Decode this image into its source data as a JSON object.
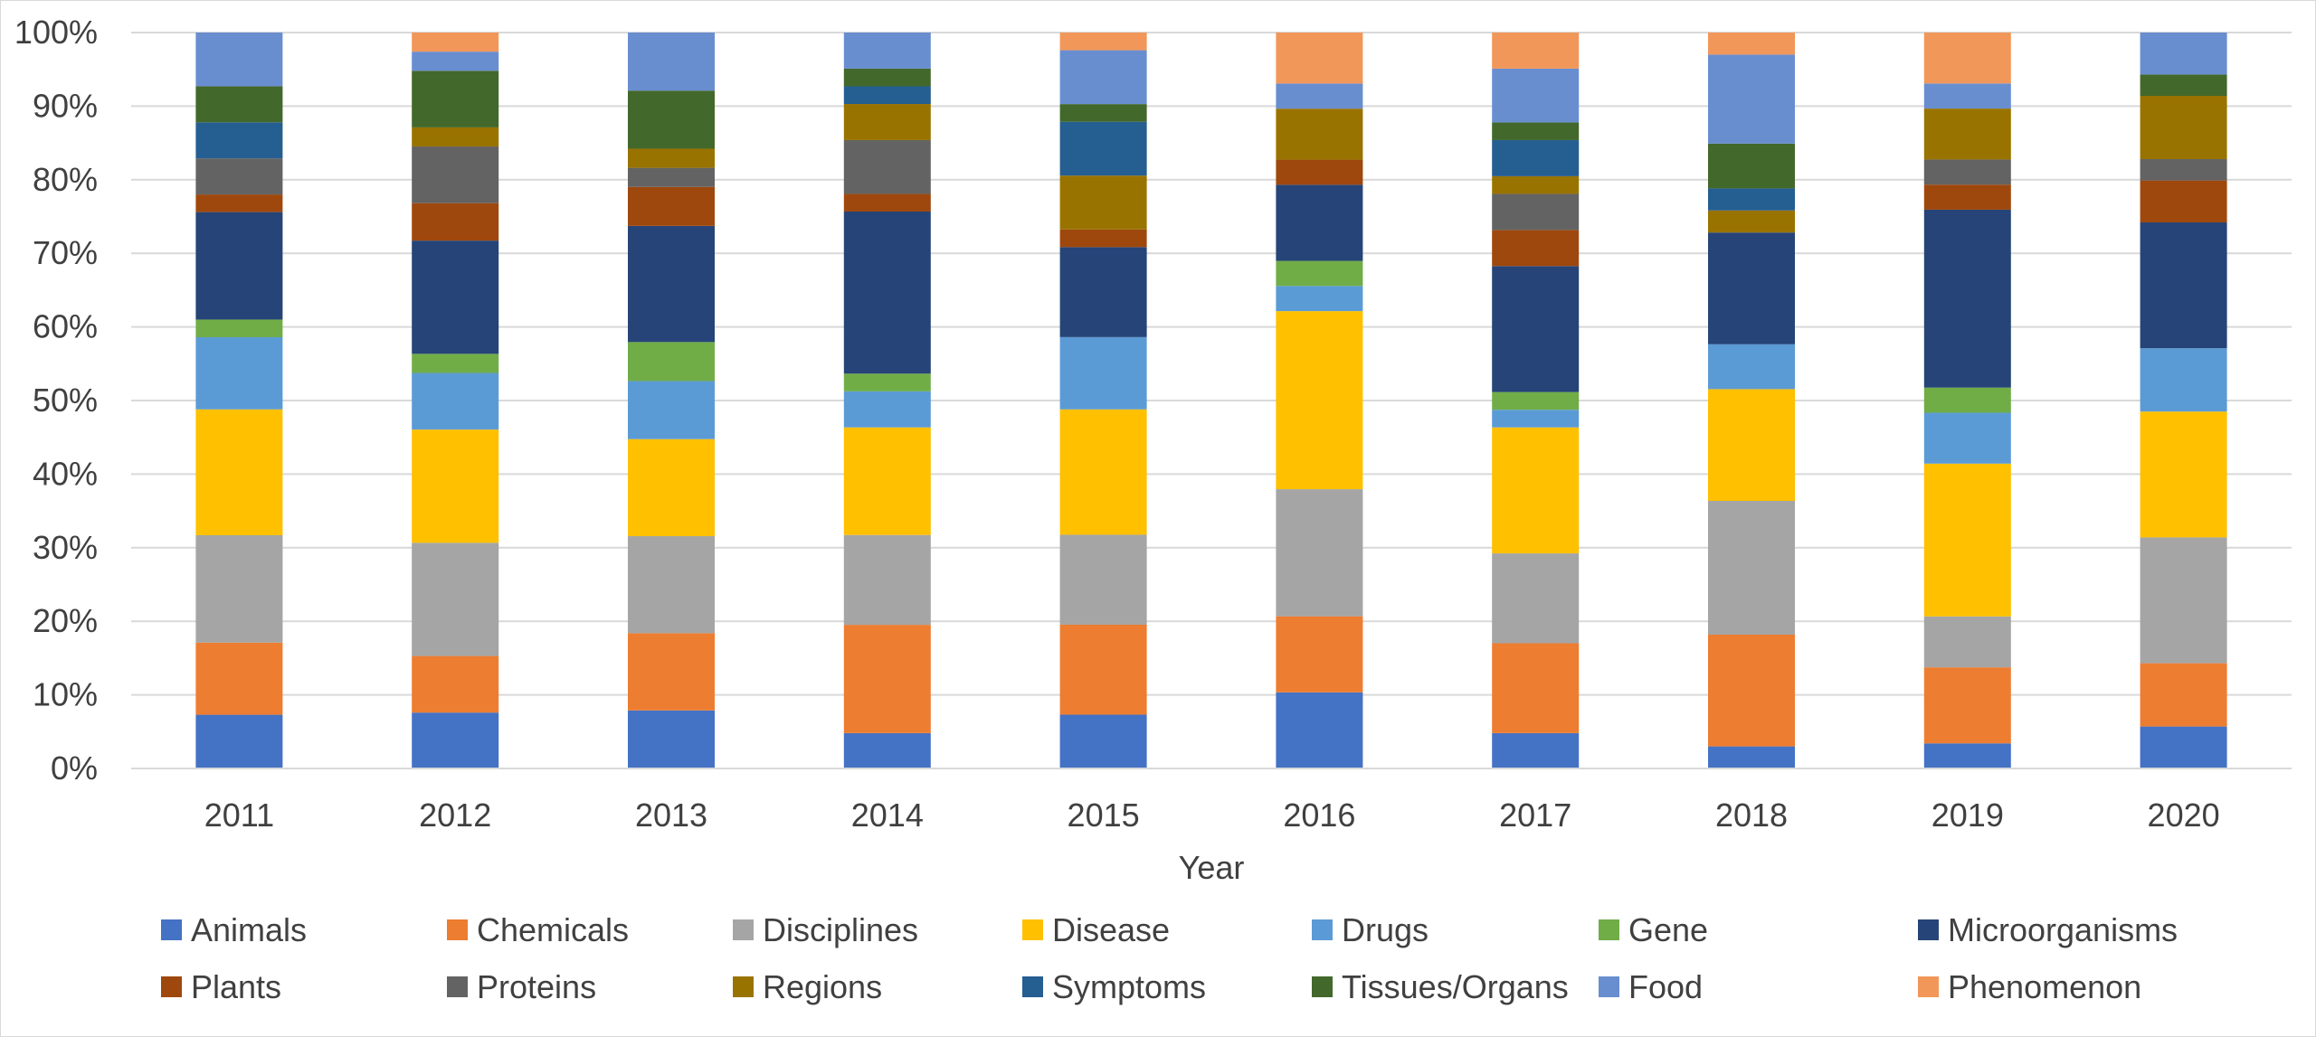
{
  "chart_data": {
    "type": "bar",
    "stacked": "percent",
    "xlabel": "Year",
    "ylabel": "",
    "categories": [
      "2011",
      "2012",
      "2013",
      "2014",
      "2015",
      "2016",
      "2017",
      "2018",
      "2019",
      "2020"
    ],
    "ylim": [
      0,
      100
    ],
    "yticks": [
      "0%",
      "10%",
      "20%",
      "30%",
      "40%",
      "50%",
      "60%",
      "70%",
      "80%",
      "90%",
      "100%"
    ],
    "grid": true,
    "legend_position": "bottom",
    "series": [
      {
        "name": "Animals",
        "color": "#4472C4",
        "values": [
          7.3,
          7.6,
          7.9,
          4.8,
          7.3,
          10.3,
          4.8,
          3.0,
          3.4,
          5.7
        ]
      },
      {
        "name": "Chemicals",
        "color": "#ED7D31",
        "values": [
          9.8,
          7.7,
          10.5,
          14.7,
          12.2,
          10.3,
          12.2,
          15.2,
          10.3,
          8.6
        ]
      },
      {
        "name": "Disciplines",
        "color": "#A5A5A5",
        "values": [
          14.6,
          15.4,
          13.2,
          12.2,
          12.2,
          17.2,
          12.2,
          18.2,
          6.9,
          17.1
        ]
      },
      {
        "name": "Disease",
        "color": "#FFC000",
        "values": [
          17.1,
          15.4,
          13.2,
          14.6,
          17.0,
          24.1,
          17.1,
          15.2,
          20.7,
          17.1
        ]
      },
      {
        "name": "Drugs",
        "color": "#5B9BD5",
        "values": [
          9.8,
          7.7,
          7.9,
          4.9,
          9.8,
          3.4,
          2.4,
          6.1,
          6.9,
          8.6
        ]
      },
      {
        "name": "Gene",
        "color": "#70AD47",
        "values": [
          2.4,
          2.6,
          5.3,
          2.4,
          0,
          3.4,
          2.4,
          0,
          3.4,
          0
        ]
      },
      {
        "name": "Microorganisms",
        "color": "#264478",
        "values": [
          14.6,
          15.4,
          15.8,
          22.0,
          12.2,
          10.3,
          17.1,
          15.2,
          24.1,
          17.1
        ]
      },
      {
        "name": "Plants",
        "color": "#9E480E",
        "values": [
          2.4,
          5.1,
          5.3,
          2.4,
          2.4,
          3.4,
          4.9,
          0,
          3.4,
          5.7
        ]
      },
      {
        "name": "Proteins",
        "color": "#636363",
        "values": [
          4.9,
          7.7,
          2.6,
          7.3,
          0,
          0,
          4.9,
          0,
          3.4,
          2.9
        ]
      },
      {
        "name": "Regions",
        "color": "#997300",
        "values": [
          0,
          2.6,
          2.6,
          4.9,
          7.3,
          6.9,
          2.4,
          3.0,
          6.9,
          8.6
        ]
      },
      {
        "name": "Symptoms",
        "color": "#255E91",
        "values": [
          4.9,
          0,
          0,
          2.4,
          7.3,
          0,
          4.9,
          3.0,
          0,
          0
        ]
      },
      {
        "name": "Tissues/Organs",
        "color": "#43682B",
        "values": [
          4.9,
          7.7,
          7.9,
          2.4,
          2.4,
          0,
          2.4,
          6.1,
          0,
          2.9
        ]
      },
      {
        "name": "Food",
        "color": "#698ED0",
        "values": [
          7.3,
          2.6,
          7.9,
          4.9,
          7.3,
          3.4,
          7.3,
          12.1,
          3.4,
          5.7
        ]
      },
      {
        "name": "Phenomenon",
        "color": "#F1975A",
        "values": [
          0,
          2.6,
          0,
          0,
          2.4,
          6.9,
          4.9,
          3.0,
          6.9,
          0
        ]
      }
    ]
  }
}
